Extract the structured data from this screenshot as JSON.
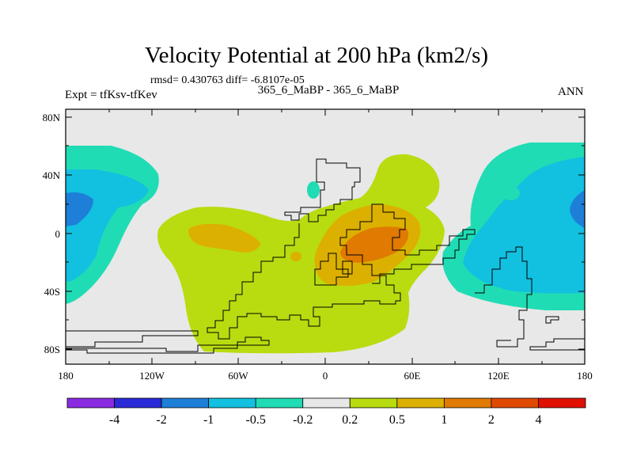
{
  "title": "Velocity Potential at 200 hPa (km2/s)",
  "stats_line": "rmsd= 0.430763  diff= -6.8107e-05",
  "expt_label": "Expt = tfKsv-tfKev",
  "subtitle": "365_6_MaBP - 365_6_MaBP",
  "season": "ANN",
  "y_ticks": [
    "80N",
    "40N",
    "0",
    "40S",
    "80S"
  ],
  "x_ticks": [
    "180",
    "120W",
    "60W",
    "0",
    "60E",
    "120E",
    "180"
  ],
  "colorbar": {
    "colors": [
      "#8a2be2",
      "#2a2ad8",
      "#1e7fd8",
      "#12c0e0",
      "#20dcb4",
      "#e8e8e8",
      "#b8dc10",
      "#dcb000",
      "#e07a00",
      "#e04a00",
      "#e01000"
    ],
    "labels": [
      "-4",
      "-2",
      "-1",
      "-0.5",
      "-0.2",
      "0.2",
      "0.5",
      "1",
      "2",
      "4"
    ]
  }
}
